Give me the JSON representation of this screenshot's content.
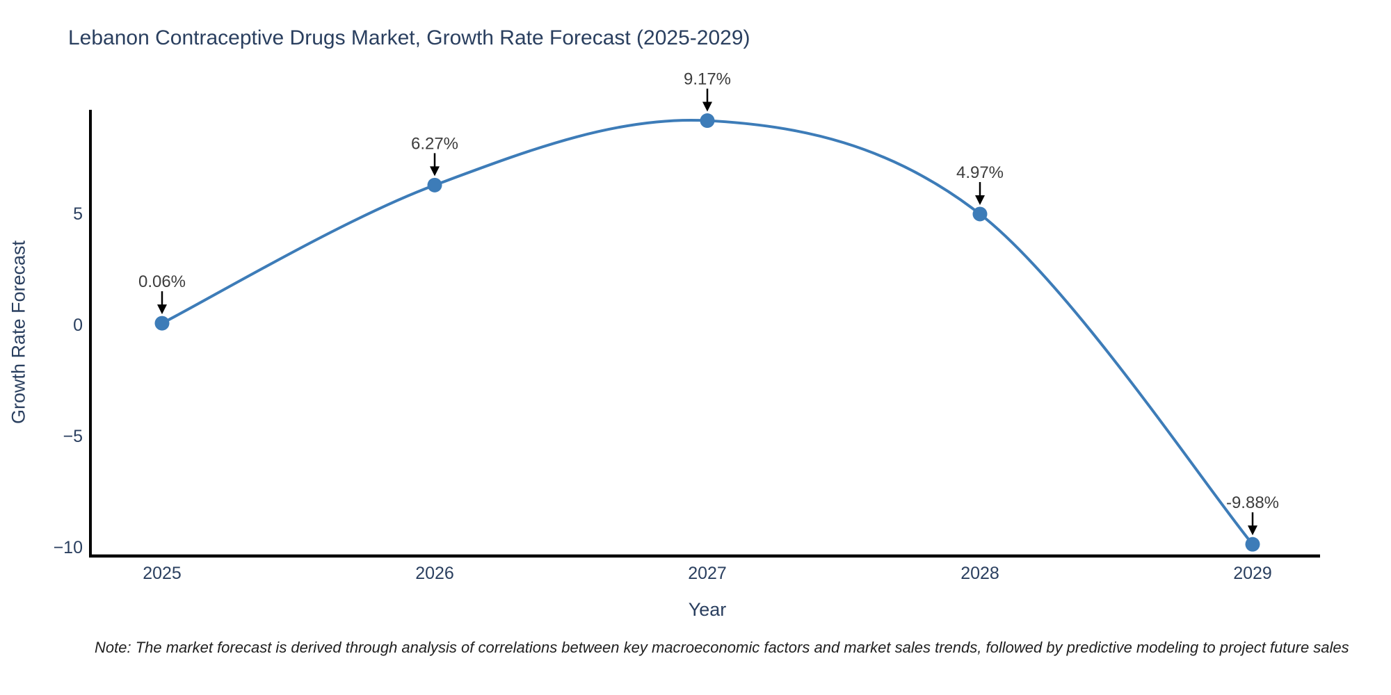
{
  "page": {
    "note": "Note: The market forecast is derived through analysis of correlations between key macroeconomic factors and market sales trends, followed by predictive modeling to project future sales"
  },
  "chart_data": {
    "type": "line",
    "title": "Lebanon Contraceptive Drugs Market, Growth Rate Forecast (2025-2029)",
    "xlabel": "Year",
    "ylabel": "Growth Rate Forecast",
    "x": [
      2025,
      2026,
      2027,
      2028,
      2029
    ],
    "series": [
      {
        "name": "Growth Rate Forecast",
        "values": [
          0.06,
          6.27,
          9.17,
          4.97,
          -9.88
        ]
      }
    ],
    "point_labels": [
      "0.06%",
      "6.27%",
      "9.17%",
      "4.97%",
      "-9.88%"
    ],
    "xtick_labels": [
      "2025",
      "2026",
      "2027",
      "2028",
      "2029"
    ],
    "ytick_values": [
      5,
      0,
      -5,
      -10
    ],
    "ytick_labels": [
      "5",
      "0",
      "−5",
      "−10"
    ],
    "xlim": [
      2024.74,
      2029.25
    ],
    "ylim": [
      -10.7,
      9.7
    ],
    "grid": false,
    "legend_position": "none",
    "line_shape": "spline",
    "marker": "circle",
    "annotation_arrows": true,
    "colors": {
      "line": "#3d7cb8",
      "marker": "#3d7cb8",
      "axis": "#000000",
      "tick_text": "#2a3f5f",
      "title_text": "#2a3f5f",
      "annotation_text": "#3d3d3d",
      "arrow": "#000000",
      "background": "#ffffff"
    }
  }
}
